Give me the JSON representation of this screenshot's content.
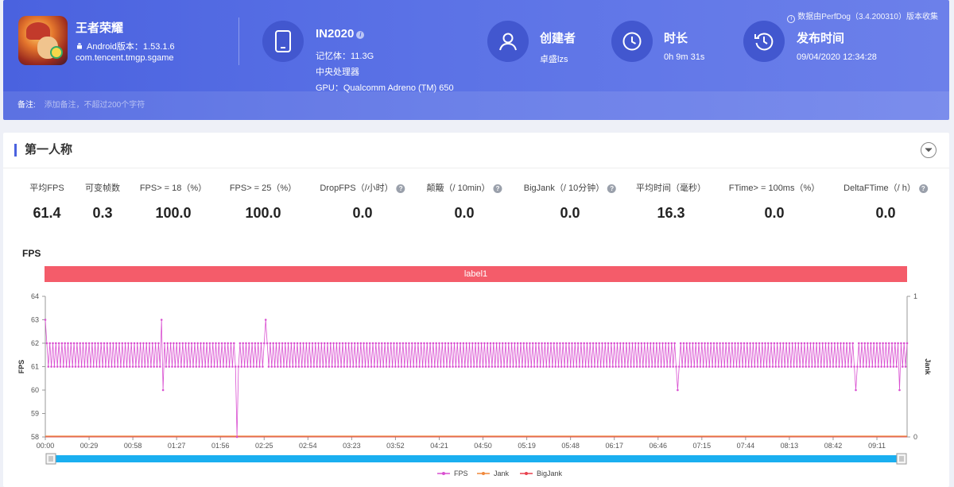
{
  "header": {
    "app_name": "王者荣耀",
    "android_version": "Android版本：1.53.1.6",
    "package": "com.tencent.tmgp.sgame",
    "device_name": "IN2020",
    "memory": "记忆体：11.3G",
    "cpu": "中央处理器",
    "gpu": "GPU：Qualcomm Adreno (TM) 650",
    "creator_title": "创建者",
    "creator_value": "卓盛lzs",
    "duration_title": "时长",
    "duration_value": "0h 9m 31s",
    "publish_title": "发布时间",
    "publish_value": "09/04/2020 12:34:28",
    "source": "数据由PerfDog（3.4.200310）版本收集",
    "note_label": "备注:",
    "note_placeholder": "添加备注，不超过200个字符"
  },
  "section": {
    "title": "第一人称"
  },
  "stats": [
    {
      "label": "平均FPS",
      "value": "61.4",
      "help": false
    },
    {
      "label": "可变帧数",
      "value": "0.3",
      "help": false
    },
    {
      "label": "FPS> = 18（%）",
      "value": "100.0",
      "help": false
    },
    {
      "label": "FPS> = 25（%）",
      "value": "100.0",
      "help": false
    },
    {
      "label": "DropFPS（/小时）",
      "value": "0.0",
      "help": true
    },
    {
      "label": "颠簸（/ 10min）",
      "value": "0.0",
      "help": true
    },
    {
      "label": "BigJank（/ 10分钟）",
      "value": "0.0",
      "help": true
    },
    {
      "label": "平均时间（毫秒）",
      "value": "16.3",
      "help": false
    },
    {
      "label": "FTime> = 100ms（%）",
      "value": "0.0",
      "help": false
    },
    {
      "label": "DeltaFTime（/ h）",
      "value": "0.0",
      "help": true
    }
  ],
  "chart_data": {
    "type": "line",
    "title": "FPS",
    "band_label": "label1",
    "ylabel": "FPS",
    "y2label": "Jank",
    "ylim": [
      58,
      64
    ],
    "y2lim": [
      0,
      1
    ],
    "yticks": [
      "58",
      "59",
      "60",
      "61",
      "62",
      "63",
      "64"
    ],
    "y2ticks": [
      "0",
      "1"
    ],
    "xlim_seconds": [
      0,
      571
    ],
    "xticks": [
      "00:00",
      "00:29",
      "00:58",
      "01:27",
      "01:56",
      "02:25",
      "02:54",
      "03:23",
      "03:52",
      "04:21",
      "04:50",
      "05:19",
      "05:48",
      "06:17",
      "06:46",
      "07:15",
      "07:44",
      "08:13",
      "08:42",
      "09:11"
    ],
    "series": [
      {
        "name": "FPS",
        "color": "#d94fd1",
        "pattern": "alternating between 61 and 62 each second",
        "base_low": 61,
        "base_high": 62,
        "spikes": [
          {
            "t": 0,
            "value": 63
          },
          {
            "t": 77,
            "value": 63
          },
          {
            "t": 78,
            "value": 60
          },
          {
            "t": 127,
            "value": 58
          },
          {
            "t": 146,
            "value": 63
          },
          {
            "t": 419,
            "value": 60
          },
          {
            "t": 537,
            "value": 60
          },
          {
            "t": 566,
            "value": 60
          }
        ]
      },
      {
        "name": "Jank",
        "color": "#f0883a",
        "constant": 0
      },
      {
        "name": "BigJank",
        "color": "#e8414e",
        "constant": 0
      }
    ],
    "legend": [
      "FPS",
      "Jank",
      "BigJank"
    ],
    "legend_position": "bottom-center",
    "grid": true
  }
}
